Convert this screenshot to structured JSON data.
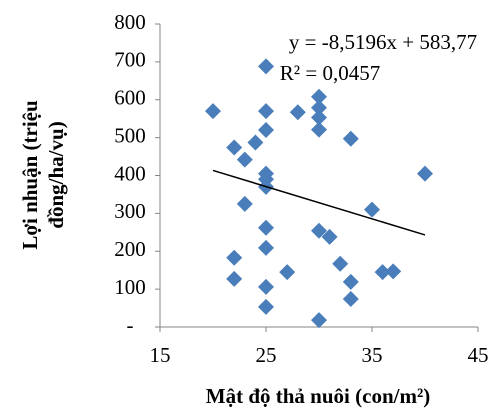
{
  "chart_data": {
    "type": "scatter",
    "xlabel": "Mật độ thả nuôi (con/m²)",
    "ylabel": [
      "Lợi nhuận (triệu",
      "đồng/ha/vụ)"
    ],
    "annotations": [
      "y = -8,5196x + 583,77",
      "R² = 0,0457"
    ],
    "xlim": [
      15,
      45
    ],
    "xticks": [
      15,
      25,
      35,
      45
    ],
    "ylim": [
      0,
      800
    ],
    "yticks": [
      {
        "value": 0,
        "label": "-"
      },
      100,
      200,
      300,
      400,
      500,
      600,
      700,
      800
    ],
    "color": "#4a7ebb",
    "x": [
      20,
      22,
      22,
      22,
      23,
      23,
      24,
      25,
      25,
      25,
      25,
      25,
      25,
      25,
      25,
      25,
      25,
      27,
      28,
      30,
      30,
      30,
      30,
      30,
      30,
      31,
      32,
      33,
      33,
      33,
      35,
      36,
      37,
      40
    ],
    "values": [
      570,
      474,
      183,
      127,
      442,
      325,
      487,
      688,
      570,
      520,
      405,
      390,
      370,
      262,
      209,
      106,
      53,
      145,
      567,
      608,
      579,
      553,
      521,
      254,
      18,
      238,
      167,
      497,
      119,
      74,
      310,
      145,
      147,
      405
    ],
    "trendline": {
      "x": [
        20,
        40
      ],
      "values": [
        413.38,
        242.99
      ],
      "color": "#000000"
    }
  }
}
